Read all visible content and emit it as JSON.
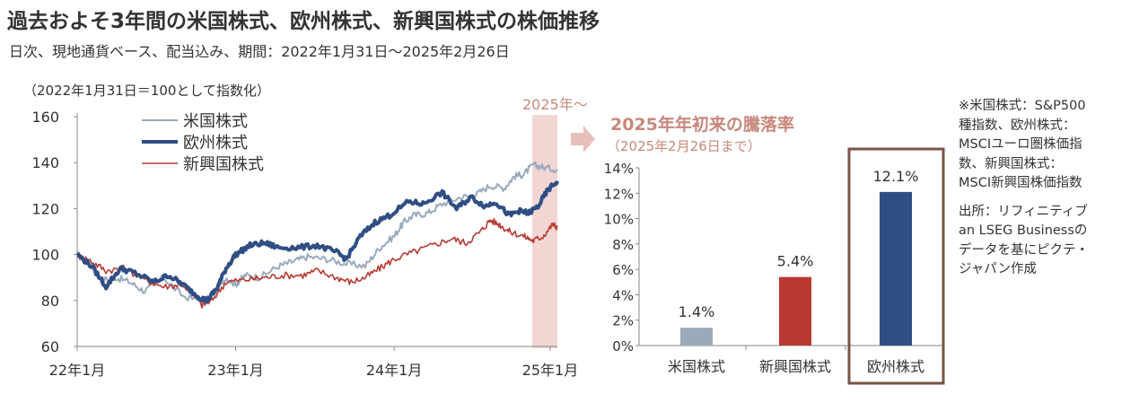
{
  "title": "過去およそ3年間の米国株式、欧州株式、新興国株式の株価推移",
  "subtitle": "日次、現地通貨ベース、配当込み、期間：2022年1月31日～2025年2月26日",
  "index_note": "（2022年1月31日＝100として指数化）",
  "highlight_label": "2025年～",
  "side_note": {
    "source_def": "※米国株式：S&P500種指数、欧州株式：MSCIユーロ圏株価指数、新興国株式：MSCI新興国株価指数",
    "source": "出所：リフィニティブ an LSEG Businessのデータを基にピクテ・ジャパン作成"
  },
  "colors": {
    "us": "#9AAABD",
    "eu": "#2F4E84",
    "em": "#B83A32",
    "highlight": "#F2D6D4",
    "box": "#7A5446",
    "accent_title": "#C7887C"
  },
  "chart_data": [
    {
      "type": "line",
      "ylim": [
        60,
        160
      ],
      "yticks": [
        60,
        80,
        100,
        120,
        140,
        160
      ],
      "xticks": [
        "22年1月",
        "23年1月",
        "24年1月",
        "25年1月"
      ],
      "series": [
        {
          "name": "米国株式",
          "key": "us",
          "x": [
            0,
            0.03,
            0.05,
            0.08,
            0.11,
            0.14,
            0.18,
            0.22,
            0.27,
            0.29,
            0.31,
            0.33,
            0.35,
            0.38,
            0.42,
            0.45,
            0.48,
            0.52,
            0.56,
            0.6,
            0.63,
            0.66,
            0.68,
            0.7,
            0.73,
            0.76,
            0.8,
            0.83,
            0.86,
            0.89,
            0.91,
            0.93,
            0.95,
            0.97,
            1.0
          ],
          "values": [
            100,
            95,
            89,
            90,
            88,
            84,
            90,
            82,
            79,
            84,
            90,
            87,
            91,
            90,
            95,
            97,
            99,
            98,
            96,
            95,
            103,
            108,
            114,
            117,
            118,
            122,
            125,
            126,
            130,
            129,
            134,
            135,
            139,
            138,
            137
          ]
        },
        {
          "name": "欧州株式",
          "key": "eu",
          "x": [
            0,
            0.03,
            0.06,
            0.09,
            0.12,
            0.16,
            0.19,
            0.22,
            0.25,
            0.27,
            0.29,
            0.31,
            0.33,
            0.36,
            0.39,
            0.42,
            0.46,
            0.5,
            0.54,
            0.56,
            0.59,
            0.62,
            0.65,
            0.69,
            0.72,
            0.76,
            0.79,
            0.82,
            0.85,
            0.87,
            0.9,
            0.92,
            0.94,
            0.96,
            0.98,
            1.0
          ],
          "values": [
            100,
            95,
            86,
            94,
            92,
            88,
            91,
            87,
            82,
            80,
            85,
            94,
            100,
            104,
            105,
            103,
            103,
            104,
            101,
            98,
            108,
            114,
            117,
            123,
            122,
            127,
            120,
            125,
            121,
            123,
            117,
            119,
            118,
            121,
            128,
            132
          ]
        },
        {
          "name": "新興国株式",
          "key": "em",
          "x": [
            0,
            0.03,
            0.06,
            0.1,
            0.14,
            0.18,
            0.22,
            0.26,
            0.28,
            0.31,
            0.35,
            0.39,
            0.43,
            0.47,
            0.5,
            0.54,
            0.57,
            0.6,
            0.63,
            0.66,
            0.7,
            0.74,
            0.78,
            0.81,
            0.84,
            0.86,
            0.88,
            0.9,
            0.93,
            0.95,
            0.97,
            0.99,
            1.0
          ],
          "values": [
            100,
            97,
            93,
            94,
            89,
            86,
            87,
            78,
            80,
            88,
            89,
            90,
            91,
            91,
            93,
            90,
            88,
            90,
            94,
            98,
            101,
            104,
            107,
            105,
            110,
            115,
            113,
            110,
            108,
            106,
            108,
            113,
            112
          ]
        }
      ]
    },
    {
      "type": "bar",
      "title": "2025年年初来の騰落率",
      "subtitle": "（2025年2月26日まで）",
      "ylim": [
        0,
        14
      ],
      "yticks": [
        "0%",
        "2%",
        "4%",
        "6%",
        "8%",
        "10%",
        "12%",
        "14%"
      ],
      "categories": [
        "米国株式",
        "新興国株式",
        "欧州株式"
      ],
      "values": [
        1.4,
        5.4,
        12.1
      ],
      "labels": [
        "1.4%",
        "5.4%",
        "12.1%"
      ],
      "keys": [
        "us",
        "em",
        "eu"
      ]
    }
  ]
}
